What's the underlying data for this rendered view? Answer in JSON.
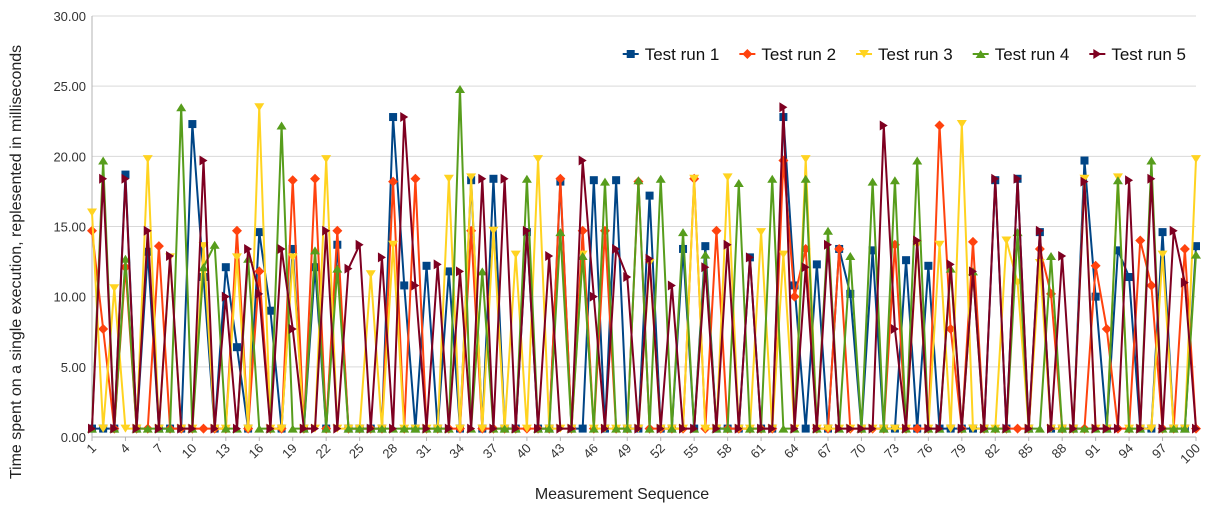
{
  "chart_data": {
    "type": "line",
    "title": "",
    "xlabel": "Measurement Sequence",
    "ylabel": "Time spent on a single execution, replesented in milliseconds",
    "ylim": [
      0,
      30
    ],
    "yticks": [
      "0.00",
      "5.00",
      "10.00",
      "15.00",
      "20.00",
      "25.00",
      "30.00"
    ],
    "xlim": [
      1,
      100
    ],
    "xticks": [
      1,
      4,
      7,
      10,
      13,
      16,
      19,
      22,
      25,
      28,
      31,
      34,
      37,
      40,
      43,
      46,
      49,
      52,
      55,
      58,
      61,
      64,
      67,
      70,
      73,
      76,
      79,
      82,
      85,
      88,
      91,
      94,
      97,
      100
    ],
    "grid": true,
    "legend_position": "top-right",
    "series": [
      {
        "name": "Test run 1",
        "color": "#004586",
        "marker": "square",
        "values": [
          0.6,
          0.6,
          0.6,
          18.7,
          0.6,
          13.2,
          0.6,
          0.6,
          0.6,
          22.3,
          11.4,
          0.6,
          12.1,
          6.4,
          0.6,
          14.6,
          9.0,
          0.6,
          13.4,
          0.6,
          12.1,
          0.6,
          13.7,
          0.6,
          0.6,
          0.6,
          0.6,
          22.8,
          10.8,
          0.6,
          12.2,
          0.6,
          11.8,
          0.6,
          18.3,
          0.6,
          18.4,
          0.6,
          0.6,
          14.6,
          0.6,
          0.6,
          18.2,
          0.6,
          0.6,
          18.3,
          0.6,
          18.3,
          0.6,
          0.6,
          17.2,
          0.6,
          0.6,
          13.4,
          0.6,
          13.6,
          0.6,
          0.6,
          0.6,
          12.8,
          0.6,
          0.6,
          22.8,
          10.8,
          0.6,
          12.3,
          0.6,
          13.4,
          10.2,
          0.6,
          13.3,
          0.6,
          0.6,
          12.6,
          0.6,
          12.2,
          0.6,
          0.6,
          0.6,
          0.6,
          0.6,
          18.3,
          0.6,
          18.4,
          0.6,
          14.6,
          0.6,
          0.6,
          0.6,
          19.7,
          10.0,
          0.6,
          13.3,
          11.4,
          0.6,
          0.6,
          14.6,
          0.6,
          0.6,
          13.6
        ]
      },
      {
        "name": "Test run 2",
        "color": "#ff420e",
        "marker": "diamond",
        "values": [
          14.7,
          7.7,
          0.6,
          12.1,
          0.6,
          0.6,
          13.6,
          0.6,
          0.6,
          0.6,
          0.6,
          0.6,
          0.6,
          14.7,
          0.6,
          11.8,
          0.6,
          0.6,
          18.3,
          0.6,
          18.4,
          0.6,
          14.7,
          0.6,
          0.6,
          0.6,
          0.6,
          18.2,
          0.6,
          18.4,
          0.6,
          0.6,
          0.6,
          0.6,
          14.7,
          0.6,
          0.6,
          0.6,
          0.6,
          0.6,
          0.6,
          0.6,
          18.4,
          0.6,
          14.7,
          0.6,
          14.7,
          0.6,
          0.6,
          18.2,
          0.6,
          0.6,
          0.6,
          0.6,
          18.4,
          0.6,
          14.7,
          0.6,
          0.6,
          0.6,
          0.6,
          0.6,
          19.7,
          10.0,
          13.4,
          0.6,
          0.6,
          13.4,
          0.6,
          0.6,
          0.6,
          0.6,
          13.7,
          0.6,
          0.6,
          0.6,
          22.2,
          7.7,
          0.6,
          13.9,
          0.6,
          0.6,
          0.6,
          0.6,
          0.6,
          13.4,
          10.2,
          0.6,
          0.6,
          0.6,
          12.2,
          7.7,
          0.6,
          0.6,
          14.0,
          10.8,
          0.6,
          0.6,
          13.4,
          0.6
        ]
      },
      {
        "name": "Test run 3",
        "color": "#ffd320",
        "marker": "triangle-down",
        "values": [
          16.0,
          0.6,
          10.6,
          0.6,
          0.6,
          19.8,
          0.6,
          12.8,
          0.6,
          0.6,
          13.6,
          0.6,
          0.6,
          12.8,
          0.6,
          23.5,
          0.6,
          0.6,
          12.8,
          0.6,
          0.6,
          19.8,
          0.6,
          0.6,
          0.6,
          11.6,
          0.6,
          13.7,
          0.6,
          0.6,
          0.6,
          0.6,
          18.4,
          0.6,
          18.5,
          0.6,
          14.7,
          0.6,
          13.0,
          0.6,
          19.8,
          0.6,
          0.6,
          0.6,
          13.0,
          0.6,
          0.6,
          0.6,
          0.6,
          0.6,
          12.4,
          0.6,
          0.6,
          0.6,
          18.4,
          0.6,
          0.6,
          18.5,
          0.6,
          0.6,
          14.6,
          0.6,
          13.0,
          0.6,
          19.8,
          0.6,
          0.6,
          0.6,
          0.6,
          0.6,
          0.6,
          0.6,
          0.6,
          0.6,
          13.7,
          0.6,
          13.7,
          0.6,
          22.3,
          0.6,
          0.6,
          0.6,
          14.0,
          11.0,
          0.6,
          12.4,
          0.6,
          0.6,
          0.6,
          18.4,
          0.6,
          0.6,
          18.5,
          0.6,
          0.6,
          0.6,
          13.0,
          0.6,
          0.6,
          19.8
        ]
      },
      {
        "name": "Test run 4",
        "color": "#579d1c",
        "marker": "triangle-up",
        "values": [
          0.6,
          19.7,
          0.6,
          12.7,
          0.6,
          0.6,
          0.6,
          0.6,
          23.5,
          0.6,
          12.1,
          13.7,
          0.6,
          0.6,
          12.7,
          0.6,
          0.6,
          22.2,
          0.6,
          0.6,
          13.3,
          0.6,
          12.0,
          0.6,
          0.6,
          0.6,
          0.6,
          0.6,
          0.6,
          0.6,
          0.6,
          0.6,
          0.6,
          24.8,
          0.6,
          11.8,
          0.6,
          0.6,
          0.6,
          18.4,
          0.6,
          0.6,
          14.6,
          0.6,
          12.9,
          0.6,
          18.2,
          0.6,
          0.6,
          18.3,
          0.6,
          18.4,
          0.6,
          14.6,
          0.6,
          13.0,
          0.6,
          0.6,
          18.1,
          0.6,
          0.6,
          18.4,
          0.6,
          0.6,
          18.4,
          0.6,
          14.7,
          0.6,
          12.9,
          0.6,
          18.2,
          0.6,
          18.3,
          0.6,
          19.7,
          0.6,
          0.6,
          12.0,
          0.6,
          11.8,
          0.6,
          0.6,
          0.6,
          14.6,
          0.6,
          0.6,
          12.9,
          0.6,
          0.6,
          0.6,
          0.6,
          0.6,
          18.3,
          0.6,
          0.6,
          19.7,
          0.6,
          0.6,
          0.6,
          13.0
        ]
      },
      {
        "name": "Test run 5",
        "color": "#7e0021",
        "marker": "triangle-right",
        "values": [
          0.6,
          18.4,
          0.6,
          18.4,
          0.6,
          14.7,
          0.6,
          12.9,
          0.6,
          0.6,
          19.7,
          0.6,
          10.0,
          0.6,
          13.4,
          10.2,
          0.6,
          13.4,
          7.7,
          0.6,
          0.6,
          14.7,
          0.6,
          12.0,
          13.7,
          0.6,
          12.8,
          0.6,
          22.8,
          10.8,
          0.6,
          12.3,
          0.6,
          11.8,
          0.6,
          18.4,
          0.6,
          18.4,
          0.6,
          14.7,
          0.6,
          12.9,
          0.6,
          0.6,
          19.7,
          10.0,
          0.6,
          13.4,
          11.4,
          0.6,
          12.7,
          0.6,
          10.8,
          0.6,
          0.6,
          12.1,
          0.6,
          13.7,
          0.6,
          12.8,
          0.6,
          0.6,
          23.5,
          0.6,
          12.1,
          0.6,
          13.7,
          0.6,
          0.6,
          0.6,
          0.6,
          22.2,
          7.7,
          0.6,
          14.0,
          0.6,
          0.6,
          12.3,
          0.6,
          11.8,
          0.6,
          18.4,
          0.6,
          18.4,
          0.6,
          14.7,
          0.6,
          12.9,
          0.6,
          18.2,
          0.6,
          0.6,
          0.6,
          18.3,
          0.6,
          18.4,
          0.6,
          14.7,
          11.0,
          0.6
        ]
      }
    ]
  }
}
